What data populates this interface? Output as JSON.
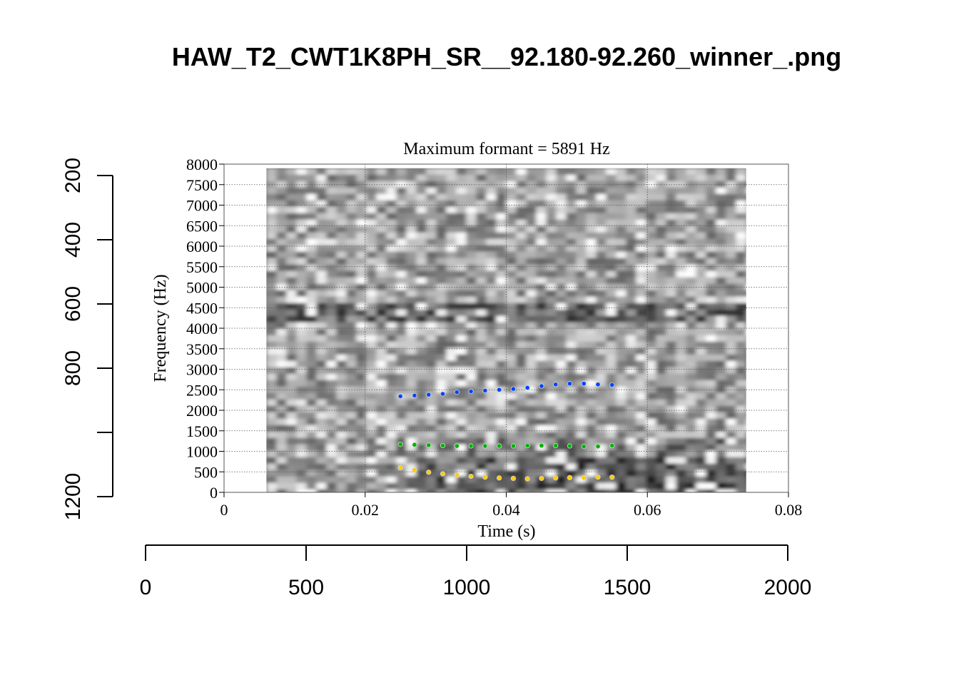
{
  "outer_plot": {
    "title": "HAW_T2_CWT1K8PH_SR__92.180-92.260_winner_.png",
    "x_axis": {
      "ticks": [
        0,
        500,
        1000,
        1500,
        2000
      ],
      "range": [
        0,
        2000
      ]
    },
    "y_axis": {
      "ticks": [
        200,
        400,
        600,
        800,
        1000,
        1200
      ],
      "tick_labels": [
        "200",
        "400",
        "600",
        "800",
        "",
        "1200"
      ],
      "range": [
        200,
        1200
      ],
      "reversed": true
    }
  },
  "chart_data": {
    "type": "scatter",
    "title": "Maximum formant  =  5891 Hz",
    "xlabel": "Time (s)",
    "ylabel": "Frequency (Hz)",
    "xlim": [
      0,
      0.08
    ],
    "ylim": [
      0,
      8000
    ],
    "x_ticks": [
      "0",
      "0.02",
      "0.04",
      "0.06",
      "0.08"
    ],
    "y_ticks": [
      "0",
      "500",
      "1000",
      "1500",
      "2000",
      "2500",
      "3000",
      "3500",
      "4000",
      "4500",
      "5000",
      "5500",
      "6000",
      "6500",
      "7000",
      "7500",
      "8000"
    ],
    "grid": true,
    "background": "grayscale spectrogram",
    "spectrogram_time_range": [
      0.006,
      0.074
    ],
    "spectrogram_freq_range": [
      0,
      7900
    ],
    "x": [
      0.025,
      0.027,
      0.029,
      0.031,
      0.033,
      0.035,
      0.037,
      0.039,
      0.041,
      0.043,
      0.045,
      0.047,
      0.049,
      0.051,
      0.053,
      0.055
    ],
    "series": [
      {
        "color": "#0044ff",
        "values": [
          2340,
          2360,
          2380,
          2400,
          2440,
          2460,
          2480,
          2500,
          2520,
          2550,
          2590,
          2630,
          2650,
          2650,
          2630,
          2620
        ]
      },
      {
        "color": "#00b400",
        "values": [
          1170,
          1160,
          1150,
          1140,
          1130,
          1130,
          1130,
          1130,
          1130,
          1140,
          1140,
          1140,
          1130,
          1120,
          1120,
          1140
        ]
      },
      {
        "color": "#ffcc00",
        "values": [
          600,
          540,
          490,
          450,
          420,
          390,
          370,
          350,
          340,
          330,
          340,
          350,
          360,
          360,
          370,
          370
        ]
      }
    ]
  }
}
